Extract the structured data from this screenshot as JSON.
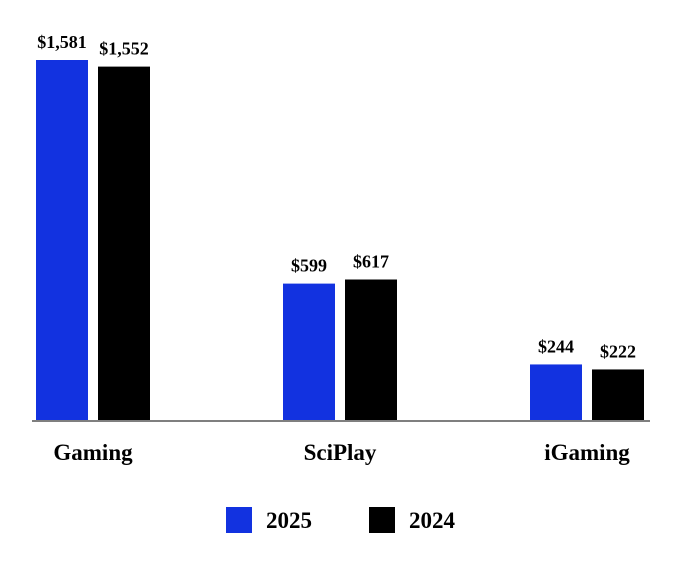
{
  "chart_data": {
    "type": "bar",
    "categories": [
      "Gaming",
      "SciPlay",
      "iGaming"
    ],
    "series": [
      {
        "name": "2025",
        "color": "#1232e0",
        "values": [
          1581,
          599,
          244
        ],
        "labels": [
          "$1,581",
          "$599",
          "$244"
        ]
      },
      {
        "name": "2024",
        "color": "#000000",
        "values": [
          1552,
          617,
          222
        ],
        "labels": [
          "$1,552",
          "$617",
          "$222"
        ]
      }
    ],
    "ylim": [
      0,
      1581
    ],
    "legend_position": "bottom",
    "title": "",
    "xlabel": "",
    "ylabel": ""
  }
}
